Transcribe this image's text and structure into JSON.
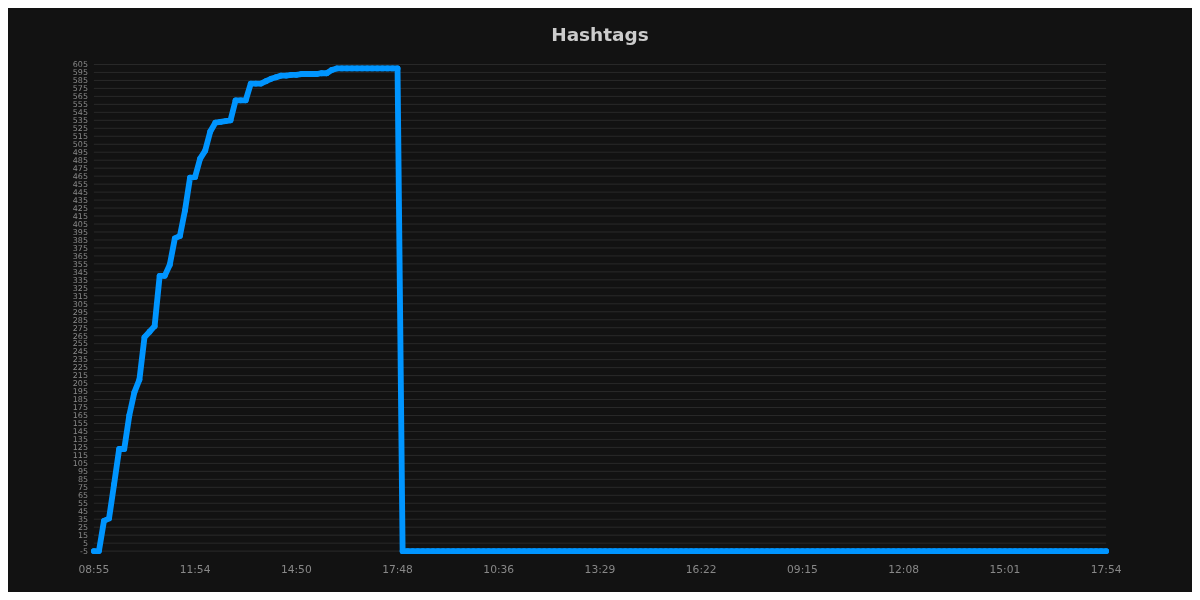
{
  "chart_data": {
    "type": "line",
    "title": "Hashtags",
    "categories": [
      "08:55",
      null,
      null,
      null,
      null,
      null,
      null,
      null,
      null,
      null,
      null,
      null,
      null,
      null,
      null,
      null,
      null,
      null,
      null,
      null,
      "11:54",
      null,
      null,
      null,
      null,
      null,
      null,
      null,
      null,
      null,
      null,
      null,
      null,
      null,
      null,
      null,
      null,
      null,
      null,
      null,
      "14:50",
      null,
      null,
      null,
      null,
      null,
      null,
      null,
      null,
      null,
      null,
      null,
      null,
      null,
      null,
      null,
      null,
      null,
      null,
      null,
      "17:48",
      null,
      null,
      null,
      null,
      null,
      null,
      null,
      null,
      null,
      null,
      null,
      null,
      null,
      null,
      null,
      null,
      null,
      null,
      null,
      "10:36",
      null,
      null,
      null,
      null,
      null,
      null,
      null,
      null,
      null,
      null,
      null,
      null,
      null,
      null,
      null,
      null,
      null,
      null,
      null,
      "13:29",
      null,
      null,
      null,
      null,
      null,
      null,
      null,
      null,
      null,
      null,
      null,
      null,
      null,
      null,
      null,
      null,
      null,
      null,
      null,
      "16:22",
      null,
      null,
      null,
      null,
      null,
      null,
      null,
      null,
      null,
      null,
      null,
      null,
      null,
      null,
      null,
      null,
      null,
      null,
      null,
      "09:15",
      null,
      null,
      null,
      null,
      null,
      null,
      null,
      null,
      null,
      null,
      null,
      null,
      null,
      null,
      null,
      null,
      null,
      null,
      null,
      "12:08",
      null,
      null,
      null,
      null,
      null,
      null,
      null,
      null,
      null,
      null,
      null,
      null,
      null,
      null,
      null,
      null,
      null,
      null,
      null,
      "15:01",
      null,
      null,
      null,
      null,
      null,
      null,
      null,
      null,
      null,
      null,
      null,
      null,
      null,
      null,
      null,
      null,
      null,
      null,
      null,
      "17:54"
    ],
    "series": [
      {
        "color": "#0095ff",
        "values": [
          -5,
          -5,
          33,
          36,
          79,
          123,
          123,
          165,
          194,
          210,
          263,
          270,
          277,
          340,
          340,
          354,
          387,
          390,
          422,
          463,
          464,
          487,
          497,
          521,
          532,
          533,
          534,
          535,
          560,
          560,
          560,
          581,
          581,
          581,
          584,
          587,
          589,
          591,
          591,
          592,
          592,
          593,
          593,
          593,
          593,
          594,
          594,
          598,
          600,
          600,
          600,
          600,
          600,
          600,
          600,
          600,
          600,
          600,
          600,
          600,
          600,
          -5,
          -5,
          -5,
          -5,
          -5,
          -5,
          -5,
          -5,
          -5,
          -5,
          -5,
          -5,
          -5,
          -5,
          -5,
          -5,
          -5,
          -5,
          -5,
          -5,
          -5,
          -5,
          -5,
          -5,
          -5,
          -5,
          -5,
          -5,
          -5,
          -5,
          -5,
          -5,
          -5,
          -5,
          -5,
          -5,
          -5,
          -5,
          -5,
          -5,
          -5,
          -5,
          -5,
          -5,
          -5,
          -5,
          -5,
          -5,
          -5,
          -5,
          -5,
          -5,
          -5,
          -5,
          -5,
          -5,
          -5,
          -5,
          -5,
          -5,
          -5,
          -5,
          -5,
          -5,
          -5,
          -5,
          -5,
          -5,
          -5,
          -5,
          -5,
          -5,
          -5,
          -5,
          -5,
          -5,
          -5,
          -5,
          -5,
          -5,
          -5,
          -5,
          -5,
          -5,
          -5,
          -5,
          -5,
          -5,
          -5,
          -5,
          -5,
          -5,
          -5,
          -5,
          -5,
          -5,
          -5,
          -5,
          -5,
          -5,
          -5,
          -5,
          -5,
          -5,
          -5,
          -5,
          -5,
          -5,
          -5,
          -5,
          -5,
          -5,
          -5,
          -5,
          -5,
          -5,
          -5,
          -5,
          -5,
          -5,
          -5,
          -5,
          -5,
          -5,
          -5,
          -5,
          -5,
          -5,
          -5,
          -5,
          -5,
          -5,
          -5,
          -5,
          -5,
          -5,
          -5,
          -5,
          -5,
          -5
        ]
      }
    ],
    "ylim": [
      -5,
      605
    ],
    "yticks": [
      -5,
      5,
      15,
      25,
      35,
      45,
      55,
      65,
      75,
      85,
      95,
      105,
      115,
      125,
      135,
      145,
      155,
      165,
      175,
      185,
      195,
      205,
      215,
      225,
      235,
      245,
      255,
      265,
      275,
      285,
      295,
      305,
      315,
      325,
      335,
      345,
      355,
      365,
      375,
      385,
      395,
      405,
      415,
      425,
      435,
      445,
      455,
      465,
      475,
      485,
      495,
      505,
      515,
      525,
      535,
      545,
      555,
      565,
      575,
      585,
      595,
      605
    ],
    "grid": "y",
    "marker": "circle",
    "line_style": "solid"
  }
}
